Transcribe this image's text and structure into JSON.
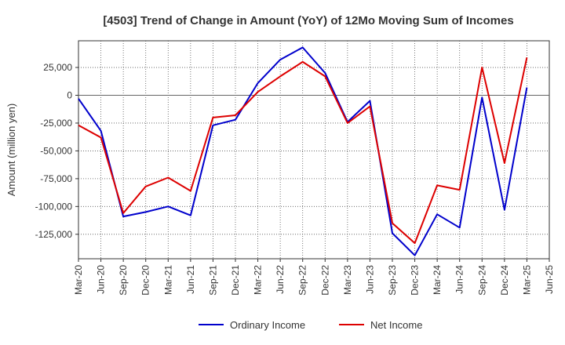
{
  "chart_data": {
    "type": "line",
    "title": "[4503]  Trend of Change in Amount (YoY) of 12Mo Moving Sum of Incomes",
    "xlabel": "",
    "ylabel": "Amount (million yen)",
    "categories": [
      "Mar-20",
      "Jun-20",
      "Sep-20",
      "Dec-20",
      "Mar-21",
      "Jun-21",
      "Sep-21",
      "Dec-21",
      "Mar-22",
      "Jun-22",
      "Sep-22",
      "Dec-22",
      "Mar-23",
      "Jun-23",
      "Sep-23",
      "Dec-23",
      "Mar-24",
      "Jun-24",
      "Sep-24",
      "Dec-24",
      "Mar-25",
      "Jun-25"
    ],
    "yticks": [
      25000,
      0,
      -25000,
      -50000,
      -75000,
      -100000,
      -125000
    ],
    "ytick_labels": [
      "25,000",
      "0",
      "-25,000",
      "-50,000",
      "-75,000",
      "-100,000",
      "-125,000"
    ],
    "ylim": [
      -147000,
      49000
    ],
    "grid": true,
    "legend_position": "bottom",
    "series": [
      {
        "name": "Ordinary Income",
        "color": "#0000cc",
        "values": [
          -3000,
          -32000,
          -109000,
          -105000,
          -100000,
          -108000,
          -27000,
          -22000,
          11000,
          32000,
          43000,
          20000,
          -24000,
          -5000,
          -124000,
          -144000,
          -107000,
          -119000,
          -2000,
          -103000,
          7000,
          null
        ]
      },
      {
        "name": "Net Income",
        "color": "#dd0000",
        "values": [
          -27000,
          -38000,
          -106000,
          -82000,
          -74000,
          -86000,
          -20000,
          -18000,
          3000,
          17000,
          30000,
          17000,
          -25000,
          -10000,
          -115000,
          -133000,
          -81000,
          -85000,
          25000,
          -61000,
          34000,
          null
        ]
      }
    ]
  }
}
